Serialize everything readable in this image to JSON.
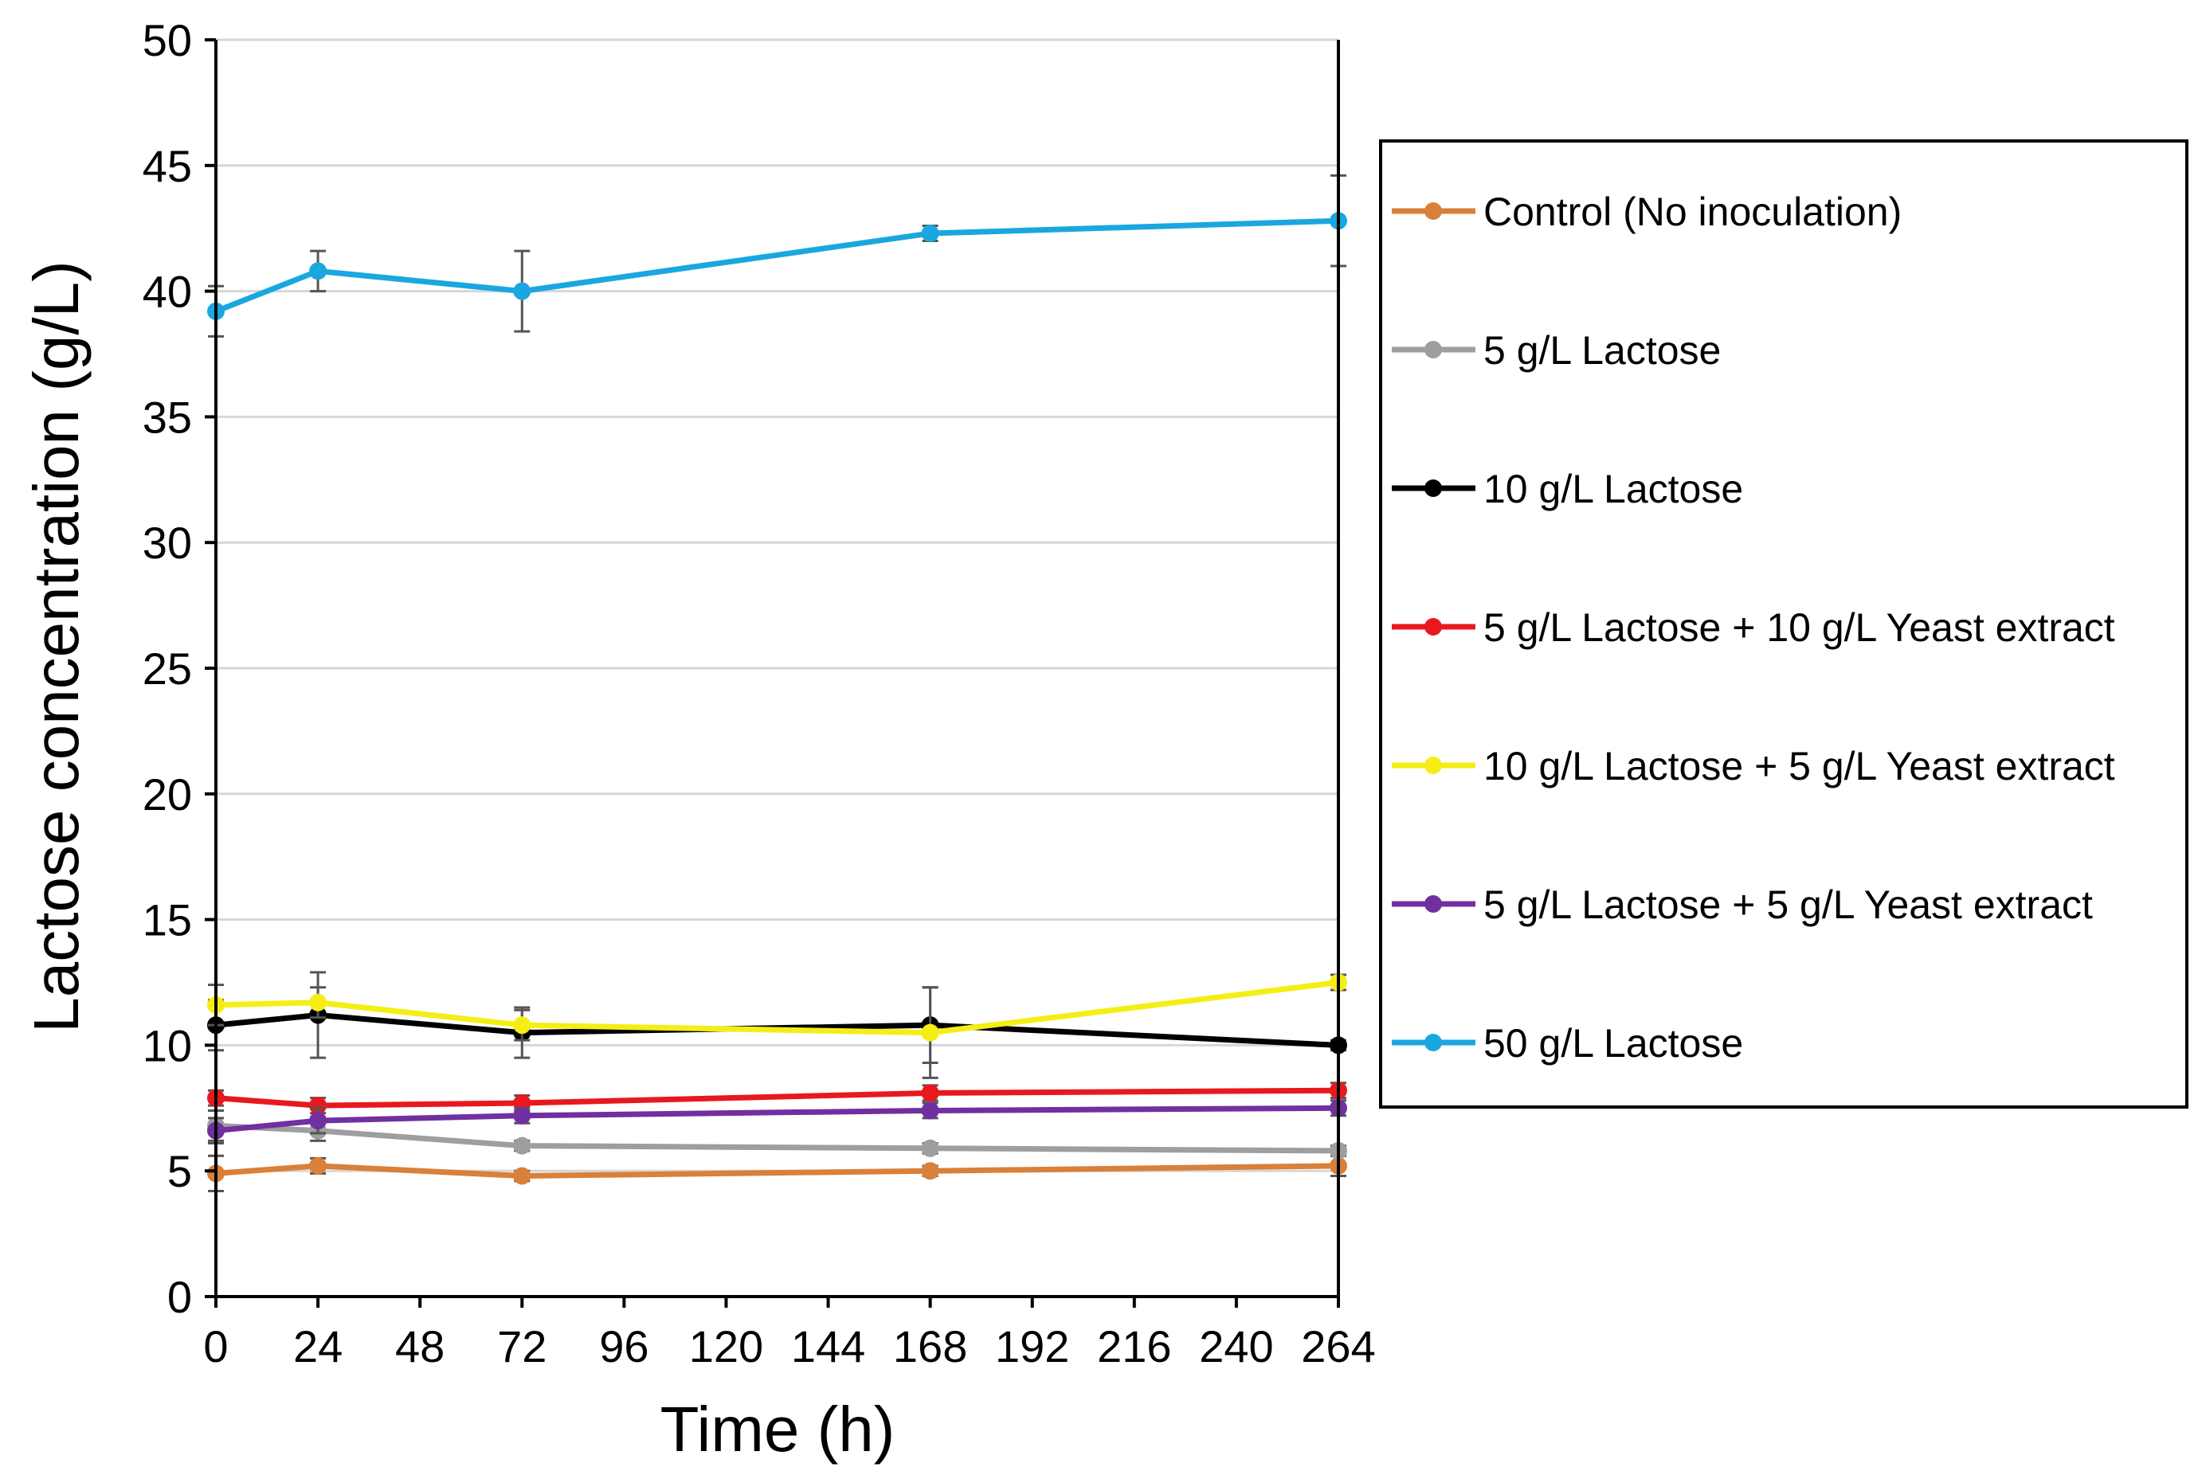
{
  "chart_data": {
    "type": "line",
    "title": "",
    "xlabel": "Time (h)",
    "ylabel": "Lactose concentration (g/L)",
    "xlim": [
      0,
      264
    ],
    "ylim": [
      0,
      50
    ],
    "xticks": [
      0,
      24,
      48,
      72,
      96,
      120,
      144,
      168,
      192,
      216,
      240,
      264
    ],
    "yticks": [
      0,
      5,
      10,
      15,
      20,
      25,
      30,
      35,
      40,
      45,
      50
    ],
    "grid": "horizontal",
    "legend_position": "right",
    "x": [
      0,
      24,
      72,
      168,
      264
    ],
    "series": [
      {
        "name": "Control (No inoculation)",
        "color": "#d9803a",
        "values": [
          4.9,
          5.2,
          4.8,
          5.0,
          5.2
        ],
        "errors": [
          0.7,
          0.3,
          0.2,
          0.2,
          0.4
        ]
      },
      {
        "name": "5 g/L Lactose",
        "color": "#9e9e9e",
        "values": [
          6.8,
          6.6,
          6.0,
          5.9,
          5.8
        ],
        "errors": [
          0.6,
          0.4,
          0.2,
          0.2,
          0.2
        ]
      },
      {
        "name": "10 g/L Lactose",
        "color": "#000000",
        "values": [
          10.8,
          11.2,
          10.5,
          10.8,
          10.0
        ],
        "errors": [
          1.0,
          1.7,
          1.0,
          1.5,
          0.2
        ]
      },
      {
        "name": "5 g/L Lactose + 10 g/L Yeast extract",
        "color": "#e8191e",
        "values": [
          7.9,
          7.6,
          7.7,
          8.1,
          8.2
        ],
        "errors": [
          0.3,
          0.3,
          0.3,
          0.3,
          0.3
        ]
      },
      {
        "name": "10 g/L Lactose + 5 g/L Yeast extract",
        "color": "#f5ee14",
        "values": [
          11.6,
          11.7,
          10.8,
          10.5,
          12.5
        ],
        "errors": [
          0.8,
          0.6,
          0.6,
          1.8,
          0.3
        ]
      },
      {
        "name": "5 g/L Lactose + 5 g/L Yeast extract",
        "color": "#7030a0",
        "values": [
          6.6,
          7.0,
          7.2,
          7.4,
          7.5
        ],
        "errors": [
          0.5,
          0.5,
          0.3,
          0.3,
          0.3
        ]
      },
      {
        "name": "50 g/L Lactose",
        "color": "#1aa7e0",
        "values": [
          39.2,
          40.8,
          40.0,
          42.3,
          42.8
        ],
        "errors": [
          1.0,
          0.8,
          1.6,
          0.3,
          1.8
        ]
      }
    ]
  }
}
